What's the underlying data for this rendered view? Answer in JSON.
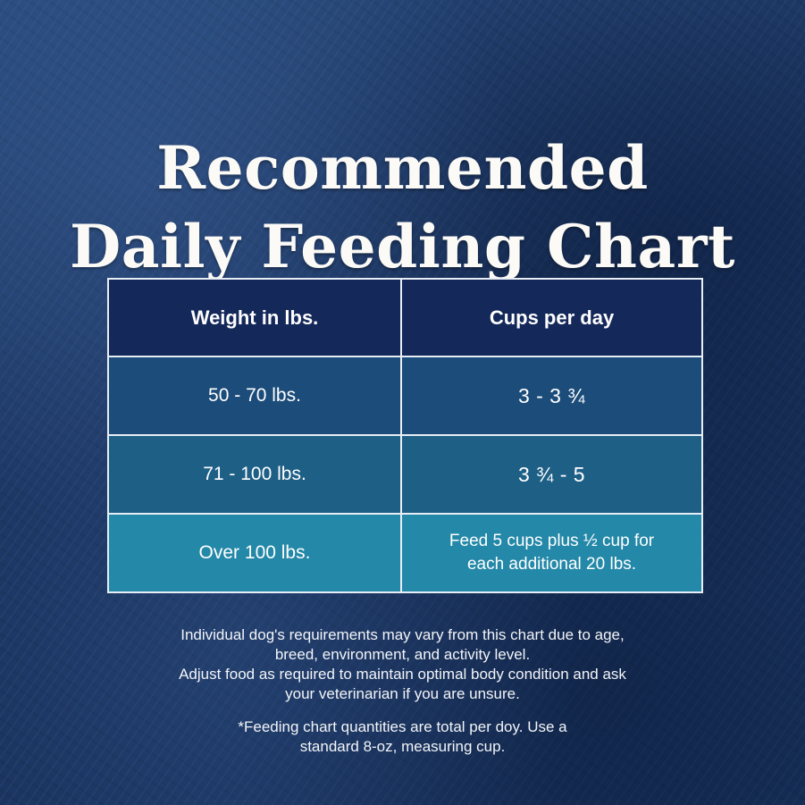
{
  "title": {
    "line1": "Recommended",
    "line2": "Daily Feeding Chart"
  },
  "table": {
    "headers": [
      "Weight in lbs.",
      "Cups per day"
    ],
    "rows": [
      [
        "50 - 70 lbs.",
        "3 - 3 ¾"
      ],
      [
        "71 - 100 lbs.",
        "3 ¾ - 5"
      ],
      [
        "Over 100 lbs.",
        "Feed 5 cups plus ½ cup for each additional 20 lbs."
      ]
    ],
    "row3_cups_lines": [
      "Feed 5 cups plus ½ cup for",
      "each additional 20 lbs."
    ]
  },
  "notes": {
    "lines": [
      "Individual dog's requirements may vary from this chart due to age,",
      "breed, environment, and activity level.",
      "Adjust food as required to maintain optimal body condition and ask",
      "your veterinarian if you are unsure."
    ]
  },
  "footnote": {
    "lines": [
      "*Feeding chart quantities are total per doy. Use a",
      "standard 8-oz, measuring cup."
    ]
  },
  "colors": {
    "background": "#1c3560",
    "header_row": "#14285a",
    "row_1": "#1b4c7a",
    "row_2": "#1e5f86",
    "row_3": "#2488a8",
    "text": "#ffffff"
  }
}
